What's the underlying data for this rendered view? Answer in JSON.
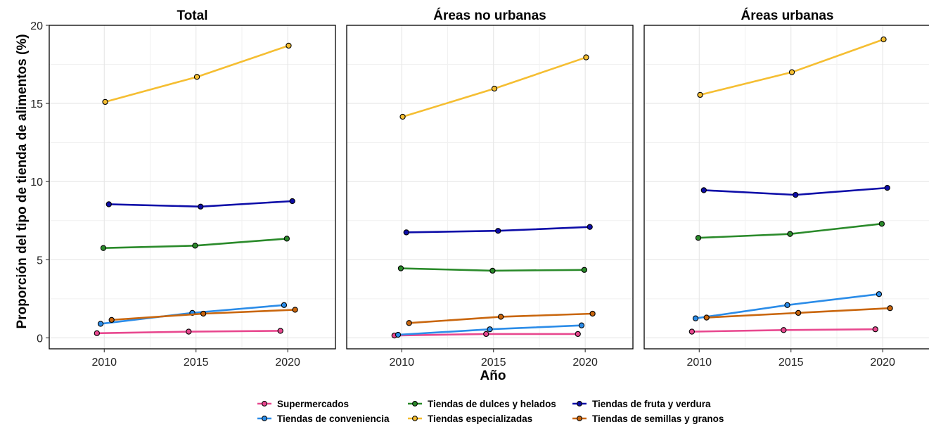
{
  "chart_data": {
    "type": "line",
    "facets": [
      "Total",
      "Áreas no urbanas",
      "Áreas urbanas"
    ],
    "xlabel": "Año",
    "ylabel": "Proporción del tipo de tienda de alimentos (%)",
    "x": [
      2010,
      2015,
      2020
    ],
    "xticks": [
      "2010",
      "2015",
      "2020"
    ],
    "yticks": [
      "0",
      "5",
      "10",
      "15",
      "20"
    ],
    "xlim": [
      2007,
      2022.6
    ],
    "ylim": [
      -0.7,
      20
    ],
    "grid": true,
    "legend_position": "bottom",
    "series": [
      {
        "name": "Supermercados",
        "color": "#e8488f",
        "panels": [
          [
            0.3,
            0.4,
            0.45
          ],
          [
            0.15,
            0.25,
            0.25
          ],
          [
            0.4,
            0.5,
            0.55
          ]
        ],
        "dodge": -0.4
      },
      {
        "name": "Tiendas de conveniencia",
        "color": "#2b8ce8",
        "panels": [
          [
            0.9,
            1.6,
            2.1
          ],
          [
            0.2,
            0.55,
            0.8
          ],
          [
            1.25,
            2.1,
            2.8
          ]
        ],
        "dodge": -0.2
      },
      {
        "name": "Tiendas de dulces y helados",
        "color": "#2a8a2a",
        "panels": [
          [
            5.75,
            5.9,
            6.35
          ],
          [
            4.45,
            4.3,
            4.35
          ],
          [
            6.4,
            6.65,
            7.3
          ]
        ],
        "dodge": -0.05
      },
      {
        "name": "Tiendas especializadas",
        "color": "#f5be32",
        "panels": [
          [
            15.1,
            16.7,
            18.7
          ],
          [
            14.15,
            15.95,
            17.95
          ],
          [
            15.55,
            17.0,
            19.1
          ]
        ],
        "dodge": 0.05
      },
      {
        "name": "Tiendas de fruta y verdura",
        "color": "#0d0da8",
        "panels": [
          [
            8.55,
            8.4,
            8.75
          ],
          [
            6.75,
            6.85,
            7.1
          ],
          [
            9.45,
            9.15,
            9.6
          ]
        ],
        "dodge": 0.25
      },
      {
        "name": "Tiendas de semillas y granos",
        "color": "#c9660d",
        "panels": [
          [
            1.15,
            1.55,
            1.8
          ],
          [
            0.95,
            1.35,
            1.55
          ],
          [
            1.3,
            1.6,
            1.9
          ]
        ],
        "dodge": 0.4
      }
    ]
  }
}
